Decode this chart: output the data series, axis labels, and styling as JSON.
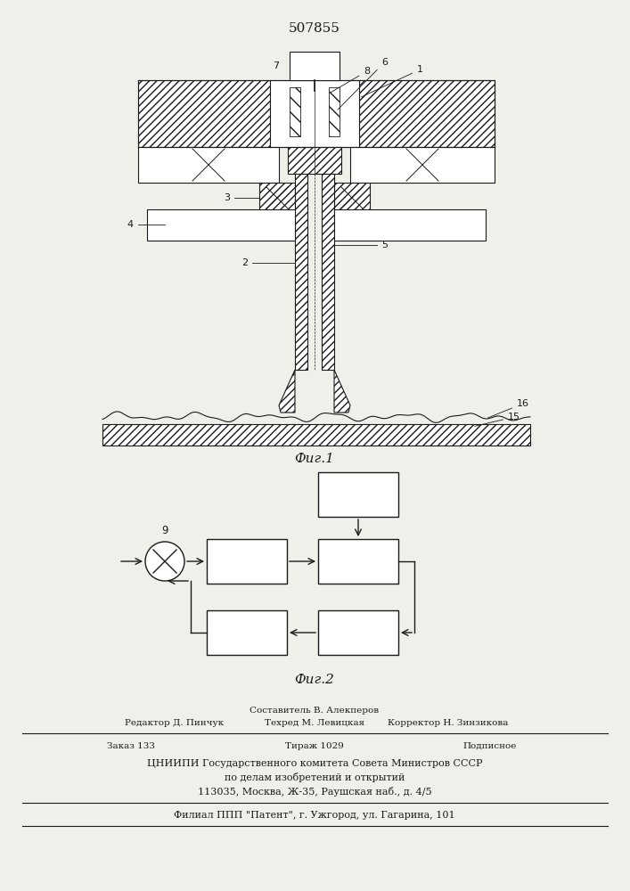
{
  "patent_number": "507855",
  "fig1_caption": "Фиг.1",
  "fig2_caption": "Фиг.2",
  "footer_lines": [
    "Составитель В. Алекперов",
    "Редактор Д. Пинчук",
    "Техред М. Левицкая",
    "Корректор Н. Зинзикова",
    "Заказ 133",
    "Тираж 1029",
    "Подписное",
    "ЦНИИПИ Государственного комитета Совета Министров СССР",
    "по делам изобретений и открытий",
    "113035, Москва, Ж-35, Раушская наб., д. 4/5",
    "Филиал ППП \"Патент\", г. Ужгород, ул. Гагарина, 101"
  ],
  "bg_color": "#f0f0eb",
  "line_color": "#1a1a1a",
  "text_color": "#1a1a1a"
}
